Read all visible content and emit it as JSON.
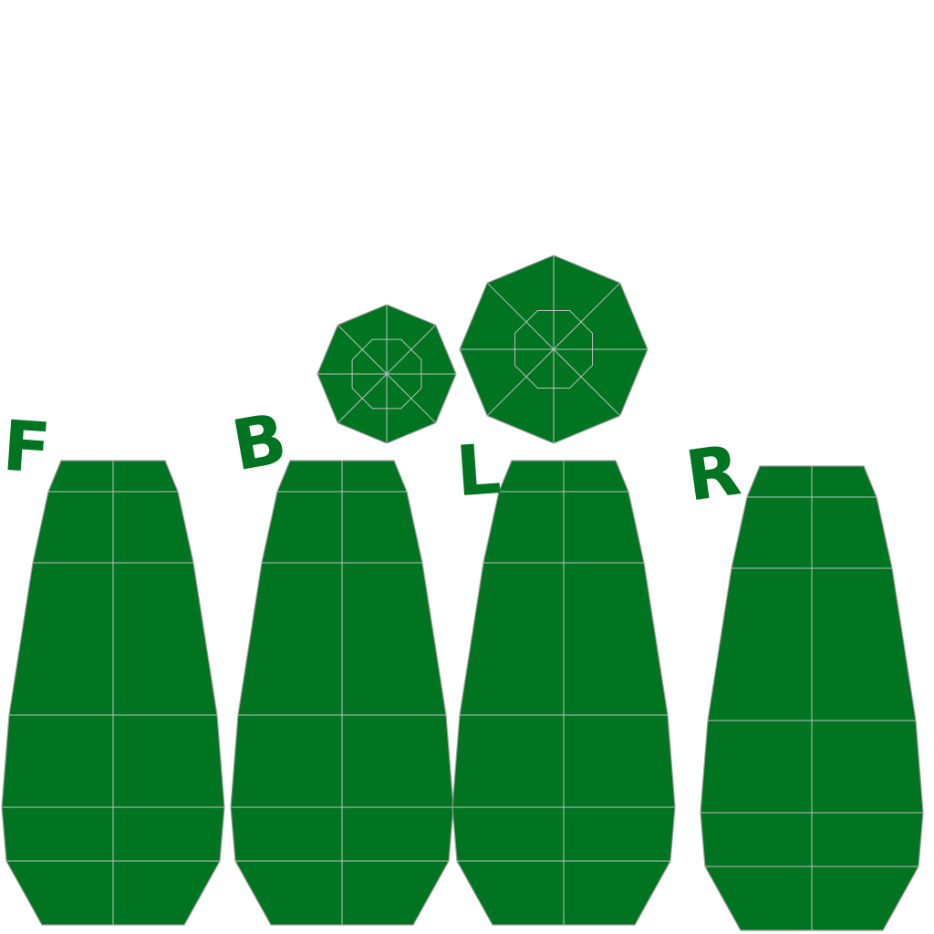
{
  "texture": {
    "fill_color": "#007420",
    "edge_color": "#bfbfbf",
    "outline_color": "#9a9a9a",
    "background": "#ffffff"
  },
  "panels": [
    {
      "id": "front",
      "label": "F"
    },
    {
      "id": "back",
      "label": "B"
    },
    {
      "id": "left",
      "label": "L"
    },
    {
      "id": "right",
      "label": "R"
    }
  ],
  "caps": [
    {
      "id": "small",
      "sides": 8
    },
    {
      "id": "large",
      "sides": 8
    }
  ]
}
